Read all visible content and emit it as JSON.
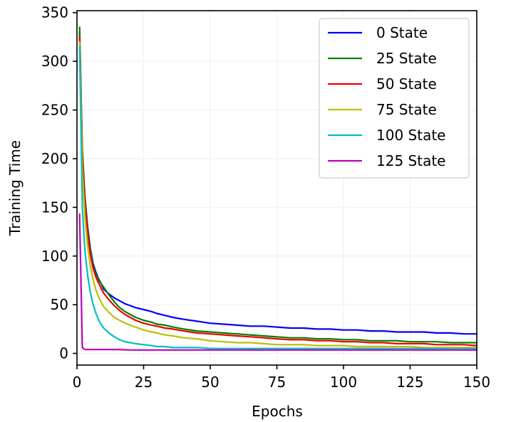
{
  "chart_data": {
    "type": "line",
    "xlabel": "Epochs",
    "ylabel": "Training Time",
    "xlim": [
      0,
      150
    ],
    "ylim": [
      -12,
      352
    ],
    "xticks": [
      0,
      25,
      50,
      75,
      100,
      125,
      150
    ],
    "yticks": [
      0,
      50,
      100,
      150,
      200,
      250,
      300,
      350
    ],
    "grid": true,
    "legend_position": "top-right",
    "series": [
      {
        "name": "0 State",
        "color": "#0000ff",
        "points": [
          [
            1,
            330
          ],
          [
            2,
            205
          ],
          [
            3,
            160
          ],
          [
            4,
            130
          ],
          [
            5,
            108
          ],
          [
            6,
            93
          ],
          [
            7,
            84
          ],
          [
            8,
            77
          ],
          [
            9,
            72
          ],
          [
            10,
            66
          ],
          [
            12,
            61
          ],
          [
            14,
            57
          ],
          [
            16,
            54
          ],
          [
            18,
            51
          ],
          [
            20,
            49
          ],
          [
            22,
            47
          ],
          [
            25,
            45
          ],
          [
            28,
            43
          ],
          [
            30,
            41
          ],
          [
            33,
            39
          ],
          [
            36,
            37
          ],
          [
            40,
            35
          ],
          [
            45,
            33
          ],
          [
            50,
            31
          ],
          [
            55,
            30
          ],
          [
            60,
            29
          ],
          [
            65,
            28
          ],
          [
            70,
            28
          ],
          [
            75,
            27
          ],
          [
            80,
            26
          ],
          [
            85,
            26
          ],
          [
            90,
            25
          ],
          [
            95,
            25
          ],
          [
            100,
            24
          ],
          [
            105,
            24
          ],
          [
            110,
            23
          ],
          [
            115,
            23
          ],
          [
            120,
            22
          ],
          [
            125,
            22
          ],
          [
            130,
            22
          ],
          [
            135,
            21
          ],
          [
            140,
            21
          ],
          [
            145,
            20
          ],
          [
            150,
            20
          ]
        ]
      },
      {
        "name": "25 State",
        "color": "#008000",
        "points": [
          [
            1,
            335
          ],
          [
            2,
            210
          ],
          [
            3,
            160
          ],
          [
            4,
            128
          ],
          [
            5,
            106
          ],
          [
            6,
            91
          ],
          [
            7,
            82
          ],
          [
            8,
            76
          ],
          [
            9,
            72
          ],
          [
            10,
            68
          ],
          [
            12,
            60
          ],
          [
            14,
            53
          ],
          [
            16,
            47
          ],
          [
            18,
            43
          ],
          [
            20,
            40
          ],
          [
            22,
            37
          ],
          [
            25,
            34
          ],
          [
            28,
            32
          ],
          [
            30,
            30
          ],
          [
            33,
            29
          ],
          [
            36,
            27
          ],
          [
            40,
            25
          ],
          [
            45,
            23
          ],
          [
            50,
            22
          ],
          [
            55,
            21
          ],
          [
            60,
            20
          ],
          [
            65,
            19
          ],
          [
            70,
            18
          ],
          [
            75,
            17
          ],
          [
            80,
            16
          ],
          [
            85,
            16
          ],
          [
            90,
            15
          ],
          [
            95,
            15
          ],
          [
            100,
            14
          ],
          [
            105,
            14
          ],
          [
            110,
            13
          ],
          [
            115,
            13
          ],
          [
            120,
            13
          ],
          [
            125,
            12
          ],
          [
            130,
            12
          ],
          [
            135,
            12
          ],
          [
            140,
            11
          ],
          [
            145,
            11
          ],
          [
            150,
            11
          ]
        ]
      },
      {
        "name": "50 State",
        "color": "#ee0000",
        "points": [
          [
            1,
            325
          ],
          [
            2,
            205
          ],
          [
            3,
            155
          ],
          [
            4,
            123
          ],
          [
            5,
            102
          ],
          [
            6,
            88
          ],
          [
            7,
            79
          ],
          [
            8,
            73
          ],
          [
            9,
            67
          ],
          [
            10,
            62
          ],
          [
            12,
            55
          ],
          [
            14,
            49
          ],
          [
            16,
            44
          ],
          [
            18,
            40
          ],
          [
            20,
            37
          ],
          [
            22,
            34
          ],
          [
            25,
            31
          ],
          [
            28,
            29
          ],
          [
            30,
            28
          ],
          [
            33,
            26
          ],
          [
            36,
            25
          ],
          [
            40,
            23
          ],
          [
            45,
            21
          ],
          [
            50,
            20
          ],
          [
            55,
            19
          ],
          [
            60,
            18
          ],
          [
            65,
            17
          ],
          [
            70,
            16
          ],
          [
            75,
            15
          ],
          [
            80,
            14
          ],
          [
            85,
            14
          ],
          [
            90,
            13
          ],
          [
            95,
            13
          ],
          [
            100,
            12
          ],
          [
            105,
            12
          ],
          [
            110,
            11
          ],
          [
            115,
            11
          ],
          [
            120,
            10
          ],
          [
            125,
            10
          ],
          [
            130,
            10
          ],
          [
            135,
            9
          ],
          [
            140,
            9
          ],
          [
            145,
            9
          ],
          [
            150,
            8
          ]
        ]
      },
      {
        "name": "75 State",
        "color": "#bfbf00",
        "points": [
          [
            1,
            320
          ],
          [
            2,
            190
          ],
          [
            3,
            140
          ],
          [
            4,
            110
          ],
          [
            5,
            90
          ],
          [
            6,
            76
          ],
          [
            7,
            66
          ],
          [
            8,
            59
          ],
          [
            9,
            53
          ],
          [
            10,
            48
          ],
          [
            12,
            42
          ],
          [
            14,
            37
          ],
          [
            16,
            34
          ],
          [
            18,
            31
          ],
          [
            20,
            29
          ],
          [
            22,
            27
          ],
          [
            25,
            24
          ],
          [
            28,
            22
          ],
          [
            30,
            21
          ],
          [
            33,
            19
          ],
          [
            36,
            18
          ],
          [
            40,
            16
          ],
          [
            45,
            15
          ],
          [
            50,
            13
          ],
          [
            55,
            12
          ],
          [
            60,
            11
          ],
          [
            65,
            11
          ],
          [
            70,
            10
          ],
          [
            75,
            9
          ],
          [
            80,
            9
          ],
          [
            85,
            9
          ],
          [
            90,
            8
          ],
          [
            95,
            8
          ],
          [
            100,
            8
          ],
          [
            105,
            7
          ],
          [
            110,
            7
          ],
          [
            115,
            7
          ],
          [
            120,
            7
          ],
          [
            125,
            7
          ],
          [
            130,
            6
          ],
          [
            135,
            6
          ],
          [
            140,
            6
          ],
          [
            145,
            6
          ],
          [
            150,
            6
          ]
        ]
      },
      {
        "name": "100 State",
        "color": "#00bfbf",
        "points": [
          [
            1,
            315
          ],
          [
            2,
            150
          ],
          [
            3,
            105
          ],
          [
            4,
            80
          ],
          [
            5,
            63
          ],
          [
            6,
            51
          ],
          [
            7,
            42
          ],
          [
            8,
            35
          ],
          [
            9,
            30
          ],
          [
            10,
            26
          ],
          [
            12,
            21
          ],
          [
            14,
            17
          ],
          [
            16,
            14
          ],
          [
            18,
            12
          ],
          [
            20,
            11
          ],
          [
            22,
            10
          ],
          [
            25,
            9
          ],
          [
            28,
            8
          ],
          [
            30,
            7
          ],
          [
            33,
            7
          ],
          [
            36,
            6
          ],
          [
            40,
            6
          ],
          [
            45,
            6
          ],
          [
            50,
            5
          ],
          [
            55,
            5
          ],
          [
            60,
            5
          ],
          [
            65,
            5
          ],
          [
            70,
            5
          ],
          [
            75,
            5
          ],
          [
            80,
            5
          ],
          [
            85,
            5
          ],
          [
            90,
            5
          ],
          [
            95,
            5
          ],
          [
            100,
            5
          ],
          [
            105,
            5
          ],
          [
            110,
            5
          ],
          [
            115,
            5
          ],
          [
            120,
            5
          ],
          [
            125,
            5
          ],
          [
            130,
            5
          ],
          [
            135,
            5
          ],
          [
            140,
            5
          ],
          [
            145,
            5
          ],
          [
            150,
            5
          ]
        ]
      },
      {
        "name": "125 State",
        "color": "#bf00bf",
        "points": [
          [
            1,
            143
          ],
          [
            2,
            6
          ],
          [
            3,
            4
          ],
          [
            4,
            4
          ],
          [
            5,
            4
          ],
          [
            6,
            4
          ],
          [
            8,
            4
          ],
          [
            10,
            4
          ],
          [
            15,
            4
          ],
          [
            20,
            3.5
          ],
          [
            25,
            3.5
          ],
          [
            30,
            3.5
          ],
          [
            40,
            3.5
          ],
          [
            50,
            3.5
          ],
          [
            60,
            3.5
          ],
          [
            70,
            3.5
          ],
          [
            80,
            3.5
          ],
          [
            90,
            3.5
          ],
          [
            100,
            3.5
          ],
          [
            110,
            3.5
          ],
          [
            120,
            3.5
          ],
          [
            130,
            3.5
          ],
          [
            140,
            3.5
          ],
          [
            150,
            3.5
          ]
        ]
      }
    ]
  }
}
